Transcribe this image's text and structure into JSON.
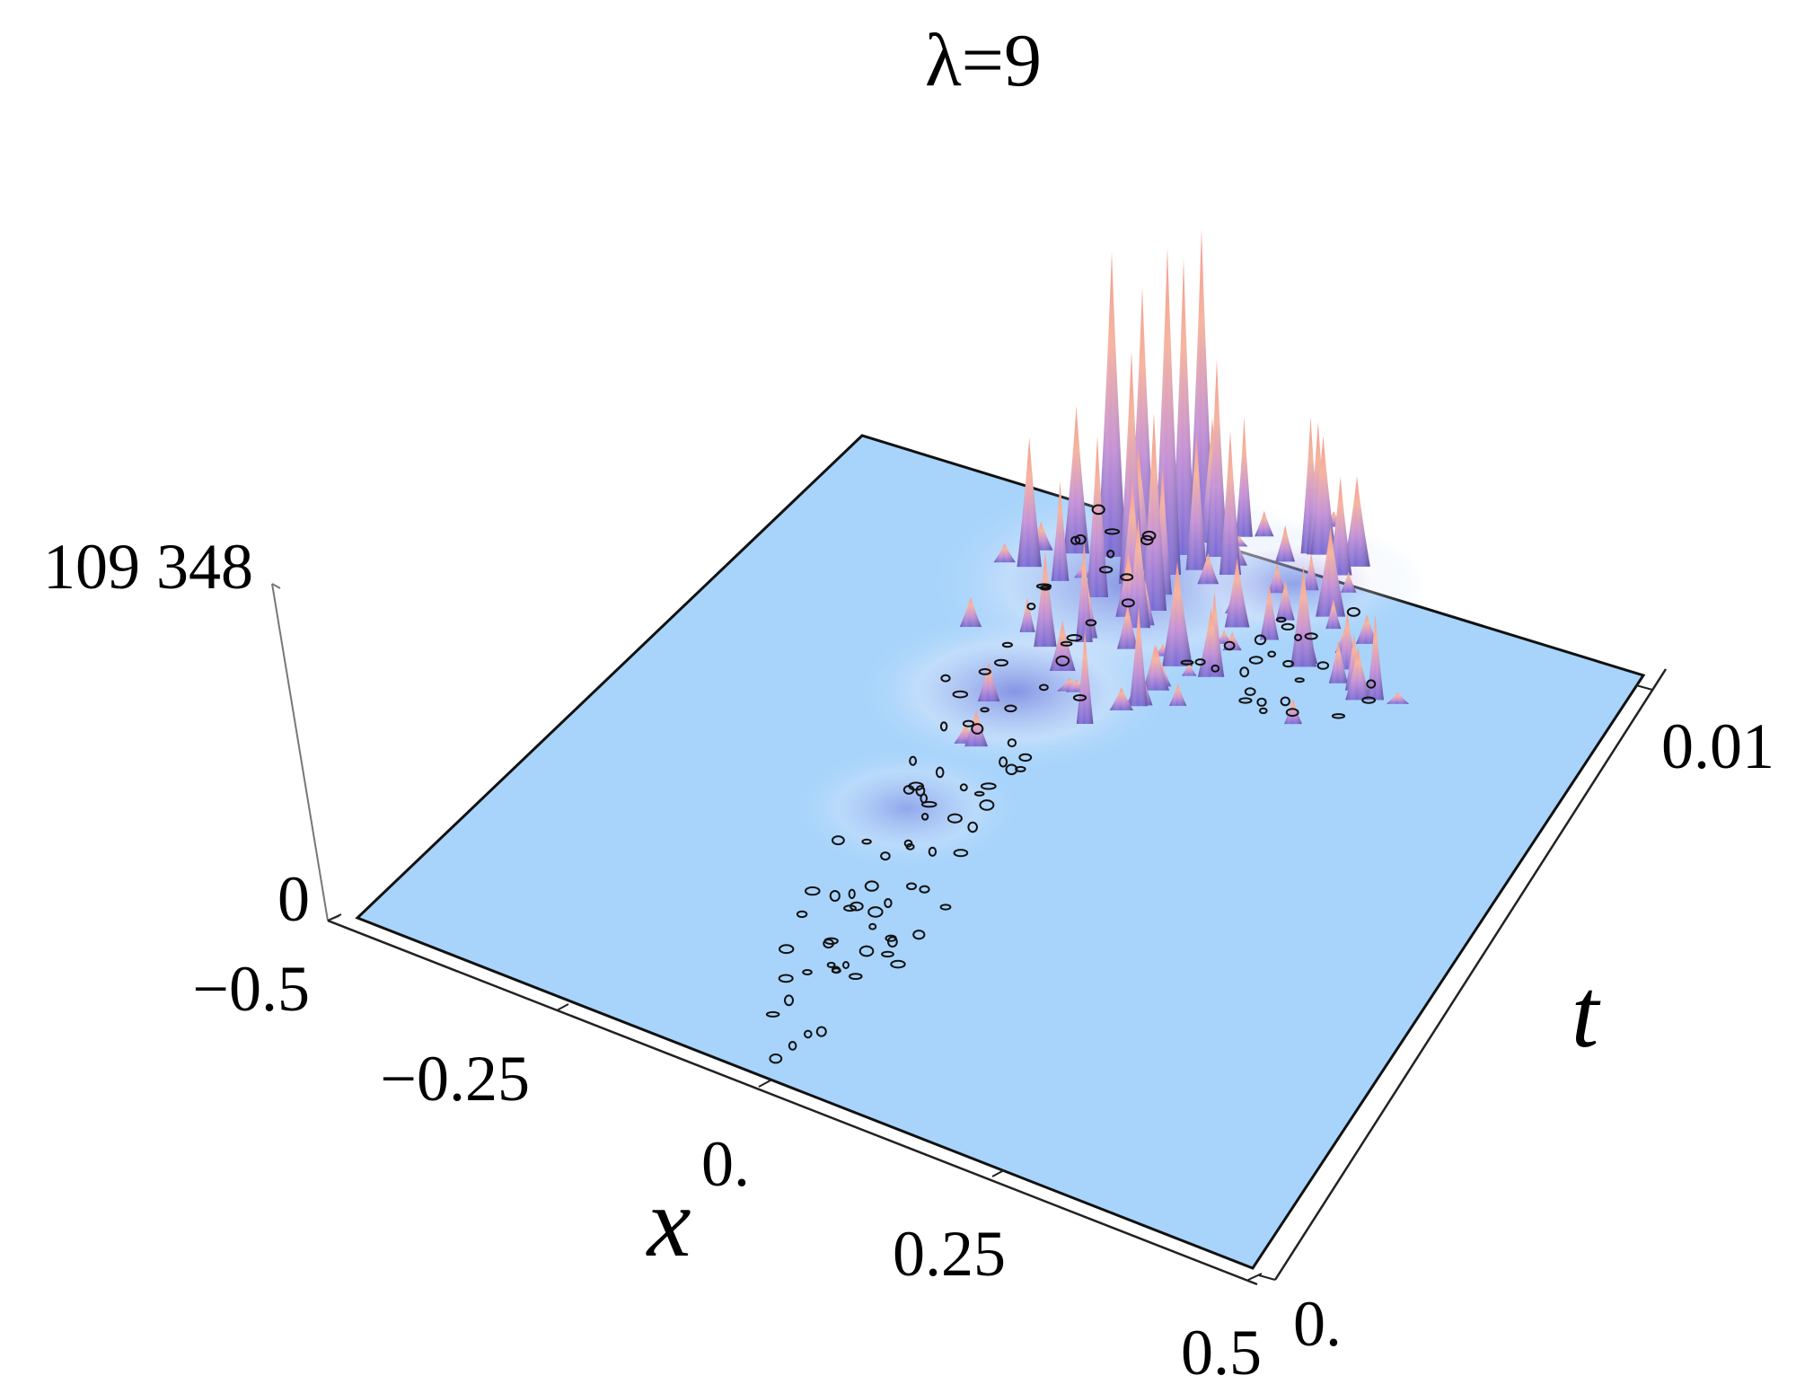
{
  "chart_data": {
    "type": "surface3d",
    "title": "λ=9",
    "xlabel": "x",
    "ylabel": "t",
    "zlabel": "",
    "x_ticks": [
      "−0.5",
      "−0.25",
      "0.",
      "0.25",
      "0.5"
    ],
    "t_ticks": [
      "0.",
      "0.01"
    ],
    "z_ticks": [
      "0",
      "109 348"
    ],
    "xlim": [
      -0.5,
      0.5
    ],
    "tlim": [
      0,
      0.012
    ],
    "zlim": [
      0,
      109348
    ],
    "colors": {
      "base": "#a8d4fb",
      "peak_low": "#7b68d8",
      "peak_high": "#f6b49a",
      "contour": "#111111"
    }
  }
}
